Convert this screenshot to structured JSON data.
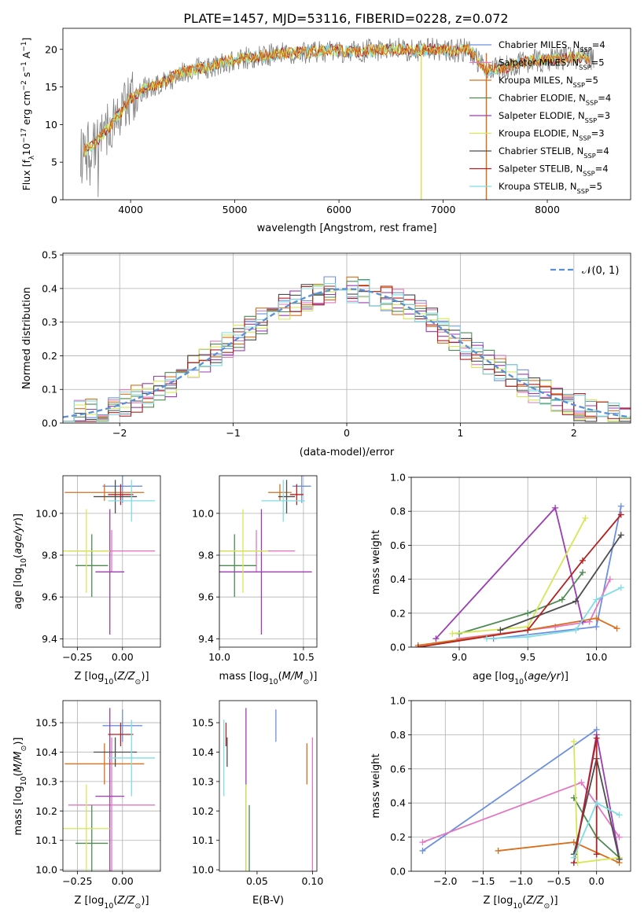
{
  "figure_title": "PLATE=1457, MJD=53116, FIBERID=0228, z=0.072",
  "colors": {
    "Chabrier MILES": "#6d8fdf",
    "Salpeter MILES": "#e377c2",
    "Kroupa MILES": "#d96f1c",
    "Chabrier ELODIE": "#4f8a52",
    "Salpeter ELODIE": "#9b3db0",
    "Kroupa ELODIE": "#d6e756",
    "Chabrier STELIB": "#4d4d4d",
    "Salpeter STELIB": "#b22222",
    "Kroupa STELIB": "#7fdde3",
    "data": "#7f7f7f",
    "normal": "#5b8fd6"
  },
  "chart_data": [
    {
      "id": "spectrum",
      "type": "line",
      "xlabel": "wavelength [Angstrom, rest frame]",
      "ylabel": "Flux [f_λ 10^-17 erg cm^-2 s^-1 A^-1]",
      "xlim": [
        3350,
        8800
      ],
      "ylim": [
        0,
        22.8
      ],
      "xticks": [
        4000,
        5000,
        6000,
        7000,
        8000
      ],
      "yticks": [
        0,
        5,
        10,
        15,
        20
      ],
      "legend": "right",
      "continuum": {
        "x": [
          3550,
          3650,
          3750,
          3900,
          4000,
          4150,
          4300,
          4500,
          4700,
          4900,
          5100,
          5300,
          5500,
          5700,
          5900,
          6100,
          6300,
          6500,
          6700,
          6900,
          7100,
          7250,
          7400,
          7600,
          7800,
          8000,
          8200,
          8400
        ],
        "y": [
          6.5,
          7.5,
          9.0,
          11.5,
          13.5,
          15.0,
          15.5,
          17.0,
          17.5,
          18.3,
          18.8,
          19.2,
          19.6,
          19.6,
          19.9,
          19.7,
          19.8,
          20.0,
          19.9,
          20.0,
          19.8,
          20.0,
          17.3,
          17.6,
          18.4,
          18.6,
          18.9,
          18.8
        ]
      },
      "series": [
        {
          "name": "Chabrier MILES",
          "nssp": 4
        },
        {
          "name": "Salpeter MILES",
          "nssp": 5
        },
        {
          "name": "Kroupa MILES",
          "nssp": 5
        },
        {
          "name": "Chabrier ELODIE",
          "nssp": 4
        },
        {
          "name": "Salpeter ELODIE",
          "nssp": 3
        },
        {
          "name": "Kroupa ELODIE",
          "nssp": 3
        },
        {
          "name": "Chabrier STELIB",
          "nssp": 4
        },
        {
          "name": "Salpeter STELIB",
          "nssp": 4
        },
        {
          "name": "Kroupa STELIB",
          "nssp": 5
        }
      ]
    },
    {
      "id": "residuals",
      "type": "bar",
      "xlabel": "(data-model)/error",
      "ylabel": "Normed distribution",
      "xlim": [
        -2.5,
        2.5
      ],
      "ylim": [
        0,
        0.505
      ],
      "xticks": [
        -2,
        -1,
        0,
        1,
        2
      ],
      "yticks": [
        0.0,
        0.1,
        0.2,
        0.3,
        0.4,
        0.5
      ],
      "grid": true,
      "legend": "top-right",
      "bin_width": 0.1,
      "normal_label": "N(0,1)"
    },
    {
      "id": "age-vs-Z",
      "type": "scatter",
      "xlabel": "Z [log10(Z/Z⊙)]",
      "ylabel": "age [log10(age/yr)]",
      "xlim": [
        -0.33,
        0.21
      ],
      "ylim": [
        9.36,
        10.18
      ],
      "xticks": [
        -0.25,
        0.0
      ],
      "xticklabels": [
        "−0.25",
        "0.00"
      ],
      "yticks": [
        9.4,
        9.6,
        9.8,
        10.0
      ],
      "grid": true
    },
    {
      "id": "age-vs-mass",
      "type": "scatter",
      "xlabel": "mass [log10(M/M⊙)]",
      "ylabel": "",
      "xlim": [
        10.0,
        10.58
      ],
      "ylim": [
        9.36,
        10.18
      ],
      "xticks": [
        10.0,
        10.5
      ],
      "yticks": [
        9.4,
        9.6,
        9.8,
        10.0
      ],
      "grid": true
    },
    {
      "id": "weight-vs-age",
      "type": "line",
      "xlabel": "age [log10(age/yr)]",
      "ylabel": "mass weight",
      "xlim": [
        8.65,
        10.25
      ],
      "ylim": [
        0,
        1.0
      ],
      "xticks": [
        9.0,
        9.5,
        10.0
      ],
      "yticks": [
        0.0,
        0.2,
        0.4,
        0.6,
        0.8,
        1.0
      ],
      "grid": true
    },
    {
      "id": "mass-vs-Z",
      "type": "scatter",
      "xlabel": "Z [log10(Z/Z⊙)]",
      "ylabel": "mass [log10(M/M⊙)]",
      "xlim": [
        -0.33,
        0.21
      ],
      "ylim": [
        9.995,
        10.575
      ],
      "xticks": [
        -0.25,
        0.0
      ],
      "xticklabels": [
        "−0.25",
        "0.00"
      ],
      "yticks": [
        10.0,
        10.1,
        10.2,
        10.3,
        10.4,
        10.5
      ],
      "grid": true
    },
    {
      "id": "mass-vs-ebv",
      "type": "scatter",
      "xlabel": "E(B-V)",
      "ylabel": "",
      "xlim": [
        0.016,
        0.104
      ],
      "ylim": [
        9.995,
        10.575
      ],
      "xticks": [
        0.05,
        0.1
      ],
      "yticks": [
        10.0,
        10.1,
        10.2,
        10.3,
        10.4,
        10.5
      ],
      "grid": false
    },
    {
      "id": "weight-vs-Z",
      "type": "line",
      "xlabel": "Z [log10(Z/Z⊙)]",
      "ylabel": "mass weight",
      "xlim": [
        -2.45,
        0.45
      ],
      "ylim": [
        0,
        1.0
      ],
      "xticks": [
        -2.0,
        -1.5,
        -1.0,
        -0.5,
        0.0
      ],
      "xticklabels": [
        "−2.0",
        "−1.5",
        "−1.0",
        "−0.5",
        "0.0"
      ],
      "yticks": [
        0.0,
        0.2,
        0.4,
        0.6,
        0.8,
        1.0
      ],
      "grid": true
    }
  ],
  "fits": [
    {
      "name": "Chabrier MILES",
      "Z": 0.0,
      "Zerr": 0.11,
      "age": 10.13,
      "ageErr": 0.08,
      "mass": 10.49,
      "massErr": 0.055,
      "ebv": 0.067,
      "ebvErr": 0.11,
      "ageW": [
        [
          9.25,
          0.05
        ],
        [
          10.0,
          0.12
        ],
        [
          10.18,
          0.83
        ]
      ],
      "ZW": [
        [
          -2.3,
          0.12
        ],
        [
          0.0,
          0.83
        ]
      ]
    },
    {
      "name": "Salpeter MILES",
      "Z": -0.06,
      "Zerr": 0.24,
      "age": 9.82,
      "ageErr": 0.1,
      "mass": 10.22,
      "massErr": 0.23,
      "ebv": 0.1,
      "ebvErr": 0.14,
      "ageW": [
        [
          9.0,
          0.05
        ],
        [
          9.7,
          0.12
        ],
        [
          9.95,
          0.15
        ],
        [
          10.1,
          0.4
        ]
      ],
      "ZW": [
        [
          -2.3,
          0.17
        ],
        [
          -0.2,
          0.52
        ],
        [
          0.3,
          0.2
        ]
      ]
    },
    {
      "name": "Kroupa MILES",
      "Z": -0.1,
      "Zerr": 0.22,
      "age": 10.1,
      "ageErr": 0.04,
      "mass": 10.36,
      "massErr": 0.07,
      "ebv": 0.095,
      "ebvErr": 0.17,
      "ageW": [
        [
          8.7,
          0.01
        ],
        [
          9.5,
          0.1
        ],
        [
          10.0,
          0.17
        ],
        [
          10.15,
          0.11
        ]
      ],
      "ZW": [
        [
          -1.3,
          0.12
        ],
        [
          -0.3,
          0.17
        ],
        [
          0.3,
          0.05
        ]
      ]
    },
    {
      "name": "Chabrier ELODIE",
      "Z": -0.17,
      "Zerr": 0.09,
      "age": 9.75,
      "ageErr": 0.15,
      "mass": 10.09,
      "massErr": 0.13,
      "ebv": 0.043,
      "ebvErr": 0.1,
      "ageW": [
        [
          9.0,
          0.08
        ],
        [
          9.5,
          0.2
        ],
        [
          9.75,
          0.28
        ],
        [
          9.9,
          0.44
        ]
      ],
      "ZW": [
        [
          -0.3,
          0.43
        ],
        [
          0.0,
          0.2
        ],
        [
          0.3,
          0.08
        ]
      ]
    },
    {
      "name": "Salpeter ELODIE",
      "Z": -0.07,
      "Zerr": 0.08,
      "age": 9.72,
      "ageErr": 0.3,
      "mass": 10.25,
      "massErr": 0.3,
      "ebv": 0.04,
      "ebvErr": 0.08,
      "ageW": [
        [
          8.83,
          0.05
        ],
        [
          9.7,
          0.82
        ],
        [
          9.9,
          0.15
        ]
      ],
      "ZW": [
        [
          -0.3,
          0.05
        ],
        [
          0.0,
          0.8
        ],
        [
          0.3,
          0.08
        ]
      ]
    },
    {
      "name": "Kroupa ELODIE",
      "Z": -0.2,
      "Zerr": 0.13,
      "age": 9.82,
      "ageErr": 0.2,
      "mass": 10.14,
      "massErr": 0.15,
      "ebv": 0.04,
      "ebvErr": 0.2,
      "ageW": [
        [
          8.95,
          0.08
        ],
        [
          9.5,
          0.12
        ],
        [
          9.92,
          0.76
        ]
      ],
      "ZW": [
        [
          -0.3,
          0.76
        ],
        [
          -0.25,
          0.05
        ],
        [
          0.3,
          0.08
        ]
      ]
    },
    {
      "name": "Chabrier STELIB",
      "Z": -0.04,
      "Zerr": 0.12,
      "age": 10.08,
      "ageErr": 0.08,
      "mass": 10.4,
      "massErr": 0.05,
      "ebv": 0.023,
      "ebvErr": 0.05,
      "ageW": [
        [
          9.3,
          0.1
        ],
        [
          9.85,
          0.27
        ],
        [
          10.18,
          0.66
        ]
      ],
      "ZW": [
        [
          -0.3,
          0.1
        ],
        [
          0.0,
          0.66
        ],
        [
          0.3,
          0.07
        ]
      ]
    },
    {
      "name": "Salpeter STELIB",
      "Z": -0.01,
      "Zerr": 0.07,
      "age": 10.09,
      "ageErr": 0.05,
      "mass": 10.46,
      "massErr": 0.04,
      "ebv": 0.022,
      "ebvErr": 0.05,
      "ageW": [
        [
          8.7,
          0.0
        ],
        [
          9.5,
          0.1
        ],
        [
          9.9,
          0.51
        ],
        [
          10.18,
          0.78
        ]
      ],
      "ZW": [
        [
          -0.3,
          0.05
        ],
        [
          0.0,
          0.78
        ],
        [
          0.0,
          0.1
        ]
      ]
    },
    {
      "name": "Kroupa STELIB",
      "Z": 0.05,
      "Zerr": 0.13,
      "age": 10.06,
      "ageErr": 0.1,
      "mass": 10.38,
      "massErr": 0.13,
      "ebv": 0.02,
      "ebvErr": 0.07,
      "ageW": [
        [
          9.2,
          0.05
        ],
        [
          9.5,
          0.06
        ],
        [
          9.85,
          0.1
        ],
        [
          10.0,
          0.28
        ],
        [
          10.18,
          0.35
        ]
      ],
      "ZW": [
        [
          -0.3,
          0.08
        ],
        [
          0.0,
          0.4
        ],
        [
          0.3,
          0.33
        ]
      ]
    }
  ]
}
